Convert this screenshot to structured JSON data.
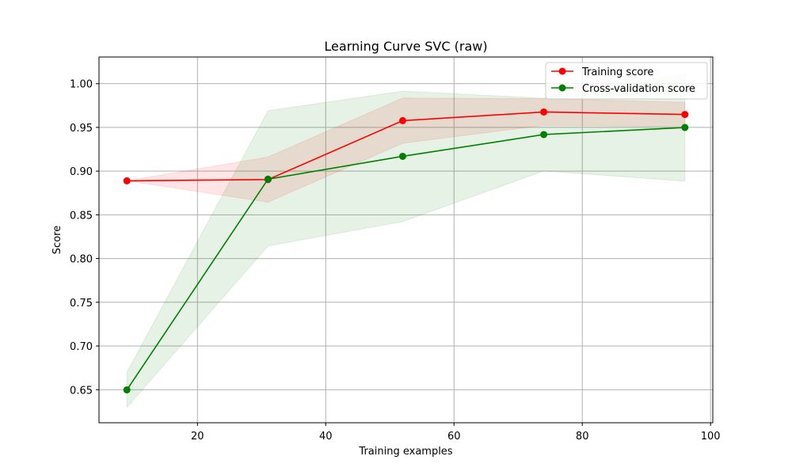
{
  "chart_data": {
    "type": "line",
    "title": "Learning Curve SVC (raw)",
    "xlabel": "Training examples",
    "ylabel": "Score",
    "xlim": [
      4.65,
      100.35
    ],
    "ylim": [
      0.6122,
      1.0305
    ],
    "x_ticks": [
      20,
      40,
      60,
      80,
      100
    ],
    "x_tick_labels": [
      "20",
      "40",
      "60",
      "80",
      "100"
    ],
    "y_ticks": [
      0.65,
      0.7,
      0.75,
      0.8,
      0.85,
      0.9,
      0.95,
      1.0
    ],
    "y_tick_labels": [
      "0.65",
      "0.70",
      "0.75",
      "0.80",
      "0.85",
      "0.90",
      "0.95",
      "1.00"
    ],
    "grid": true,
    "legend_position": "top-right",
    "x": [
      9,
      31,
      52,
      74,
      96
    ],
    "series": [
      {
        "name": "Training score",
        "color": "#ff0000",
        "values": [
          0.8889,
          0.8903,
          0.9577,
          0.9676,
          0.9648
        ],
        "band_low": [
          0.8889,
          0.8645,
          0.9318,
          0.9523,
          0.9509
        ],
        "band_high": [
          0.8889,
          0.9161,
          0.9836,
          0.9829,
          0.9787
        ]
      },
      {
        "name": "Cross-validation score",
        "color": "#008000",
        "values": [
          0.6498,
          0.8908,
          0.9169,
          0.9418,
          0.9499
        ],
        "band_low": [
          0.6297,
          0.8143,
          0.8423,
          0.9002,
          0.8885
        ],
        "band_high": [
          0.6699,
          0.9691,
          0.9914,
          0.9834,
          1.0113
        ]
      }
    ]
  }
}
